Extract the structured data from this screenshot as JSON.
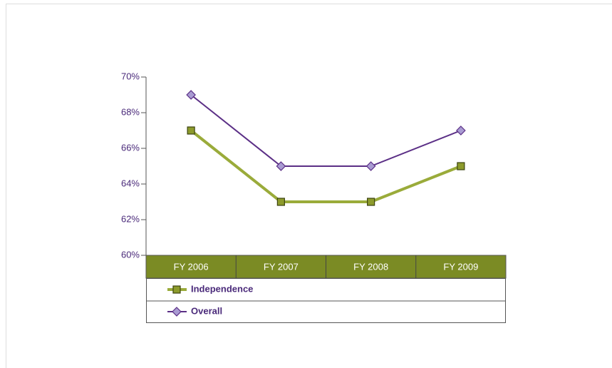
{
  "chart_data": {
    "type": "line",
    "categories": [
      "FY 2006",
      "FY 2007",
      "FY 2008",
      "FY 2009"
    ],
    "series": [
      {
        "name": "Independence",
        "color": "#9aab3a",
        "marker": "square",
        "values": [
          67,
          63,
          63,
          65
        ]
      },
      {
        "name": "Overall",
        "color": "#5b2f86",
        "marker": "diamond",
        "values": [
          69,
          65,
          65,
          67
        ]
      }
    ],
    "ylim": [
      60,
      70
    ],
    "yticks": [
      {
        "value": 60,
        "label": "60%"
      },
      {
        "value": 62,
        "label": "62%"
      },
      {
        "value": 64,
        "label": "64%"
      },
      {
        "value": 66,
        "label": "66%"
      },
      {
        "value": 68,
        "label": "68%"
      },
      {
        "value": 70,
        "label": "70%"
      }
    ]
  }
}
